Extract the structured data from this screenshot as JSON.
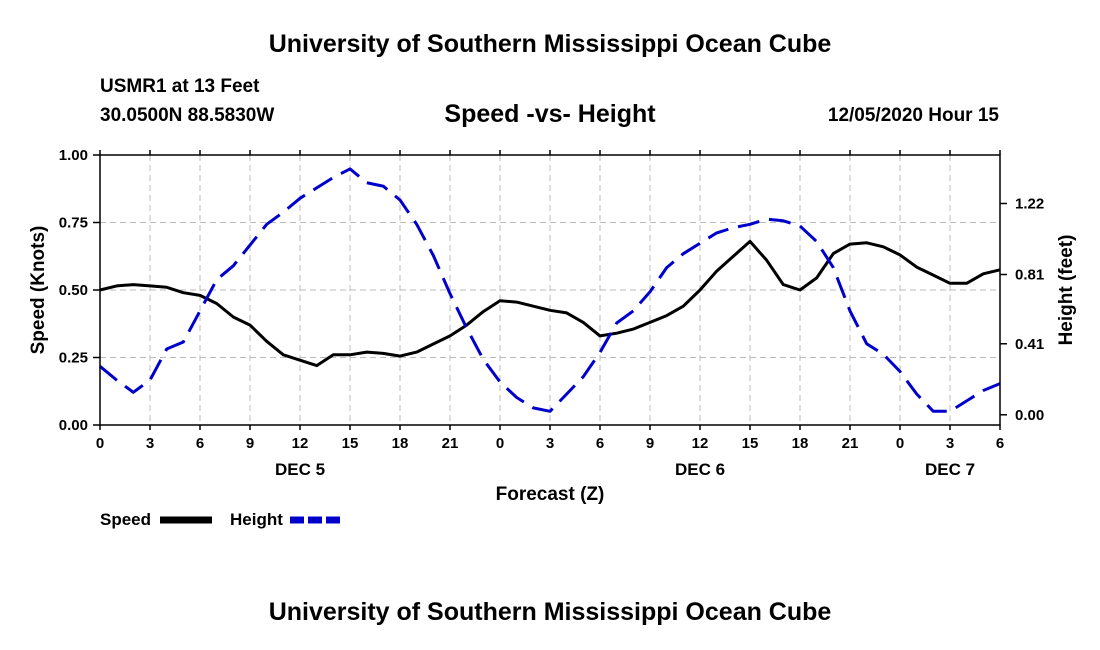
{
  "header": {
    "title": "University of Southern Mississippi Ocean Cube",
    "station": "USMR1 at 13 Feet",
    "coords": "30.0500N 88.5830W",
    "timestamp": "12/05/2020 Hour 15"
  },
  "footer": {
    "title": "University of Southern Mississippi Ocean Cube"
  },
  "colors": {
    "speed": "#000000",
    "height": "#0000cc",
    "grid": "#bbbbbb"
  },
  "chart_data": {
    "type": "line",
    "title": "Speed -vs- Height",
    "xlabel": "Forecast (Z)",
    "ylabel": "Speed (Knots)",
    "y2label": "Height (feet)",
    "xlim": [
      0,
      54
    ],
    "ylim": [
      0,
      1
    ],
    "y2lim": [
      -0.059,
      1.5
    ],
    "x_ticks": [
      {
        "x": 0,
        "label": "0"
      },
      {
        "x": 3,
        "label": "3"
      },
      {
        "x": 6,
        "label": "6"
      },
      {
        "x": 9,
        "label": "9"
      },
      {
        "x": 12,
        "label": "12"
      },
      {
        "x": 15,
        "label": "15"
      },
      {
        "x": 18,
        "label": "18"
      },
      {
        "x": 21,
        "label": "21"
      },
      {
        "x": 24,
        "label": "0"
      },
      {
        "x": 27,
        "label": "3"
      },
      {
        "x": 30,
        "label": "6"
      },
      {
        "x": 33,
        "label": "9"
      },
      {
        "x": 36,
        "label": "12"
      },
      {
        "x": 39,
        "label": "15"
      },
      {
        "x": 42,
        "label": "18"
      },
      {
        "x": 45,
        "label": "21"
      },
      {
        "x": 48,
        "label": "0"
      },
      {
        "x": 51,
        "label": "3"
      },
      {
        "x": 54,
        "label": "6"
      }
    ],
    "day_labels": [
      {
        "x": 12,
        "label": "DEC 5"
      },
      {
        "x": 36,
        "label": "DEC 6"
      },
      {
        "x": 51,
        "label": "DEC 7"
      }
    ],
    "y_ticks": [
      {
        "v": 0,
        "label": "0.00"
      },
      {
        "v": 0.25,
        "label": "0.25"
      },
      {
        "v": 0.5,
        "label": "0.50"
      },
      {
        "v": 0.75,
        "label": "0.75"
      },
      {
        "v": 1,
        "label": "1.00"
      }
    ],
    "y2_ticks": [
      {
        "v": 0.0,
        "label": "0.00"
      },
      {
        "v": 0.41,
        "label": "0.41"
      },
      {
        "v": 0.81,
        "label": "0.81"
      },
      {
        "v": 1.22,
        "label": "1.22"
      }
    ],
    "legend": [
      {
        "name": "Speed",
        "style": "solid"
      },
      {
        "name": "Height",
        "style": "dashed"
      }
    ],
    "series": [
      {
        "name": "Speed",
        "axis": "left",
        "x": [
          0,
          1,
          2,
          3,
          4,
          5,
          6,
          7,
          8,
          9,
          10,
          11,
          12,
          13,
          14,
          15,
          16,
          17,
          18,
          19,
          20,
          21,
          22,
          23,
          24,
          25,
          26,
          27,
          28,
          29,
          30,
          31,
          32,
          33,
          34,
          35,
          36,
          37,
          38,
          39,
          40,
          41,
          42,
          43,
          44,
          45,
          46,
          47,
          48,
          49,
          50,
          51,
          52,
          53,
          54
        ],
        "values": [
          0.5,
          0.515,
          0.52,
          0.515,
          0.51,
          0.49,
          0.48,
          0.45,
          0.4,
          0.37,
          0.31,
          0.26,
          0.24,
          0.22,
          0.26,
          0.26,
          0.27,
          0.265,
          0.255,
          0.27,
          0.3,
          0.33,
          0.37,
          0.42,
          0.46,
          0.455,
          0.44,
          0.425,
          0.415,
          0.38,
          0.33,
          0.34,
          0.355,
          0.38,
          0.405,
          0.44,
          0.5,
          0.57,
          0.625,
          0.68,
          0.61,
          0.52,
          0.5,
          0.545,
          0.635,
          0.67,
          0.675,
          0.66,
          0.63,
          0.585,
          0.555,
          0.525,
          0.525,
          0.56,
          0.575
        ]
      },
      {
        "name": "Height",
        "axis": "right",
        "x": [
          0,
          1,
          2,
          3,
          4,
          5,
          6,
          7,
          8,
          9,
          10,
          11,
          12,
          13,
          14,
          15,
          16,
          17,
          18,
          19,
          20,
          21,
          22,
          23,
          24,
          25,
          26,
          27,
          28,
          29,
          30,
          31,
          32,
          33,
          34,
          35,
          36,
          37,
          38,
          39,
          40,
          41,
          42,
          43,
          44,
          45,
          46,
          47,
          48,
          49,
          50,
          51,
          52,
          53,
          54
        ],
        "values": [
          0.28,
          0.2,
          0.13,
          0.2,
          0.38,
          0.42,
          0.6,
          0.78,
          0.86,
          0.98,
          1.1,
          1.17,
          1.25,
          1.31,
          1.37,
          1.42,
          1.34,
          1.32,
          1.24,
          1.1,
          0.92,
          0.7,
          0.5,
          0.32,
          0.19,
          0.1,
          0.04,
          0.02,
          0.12,
          0.22,
          0.36,
          0.53,
          0.6,
          0.71,
          0.85,
          0.93,
          0.99,
          1.05,
          1.08,
          1.1,
          1.13,
          1.12,
          1.09,
          1.0,
          0.85,
          0.6,
          0.41,
          0.35,
          0.25,
          0.12,
          0.02,
          0.02,
          0.08,
          0.14,
          0.18
        ]
      }
    ]
  }
}
